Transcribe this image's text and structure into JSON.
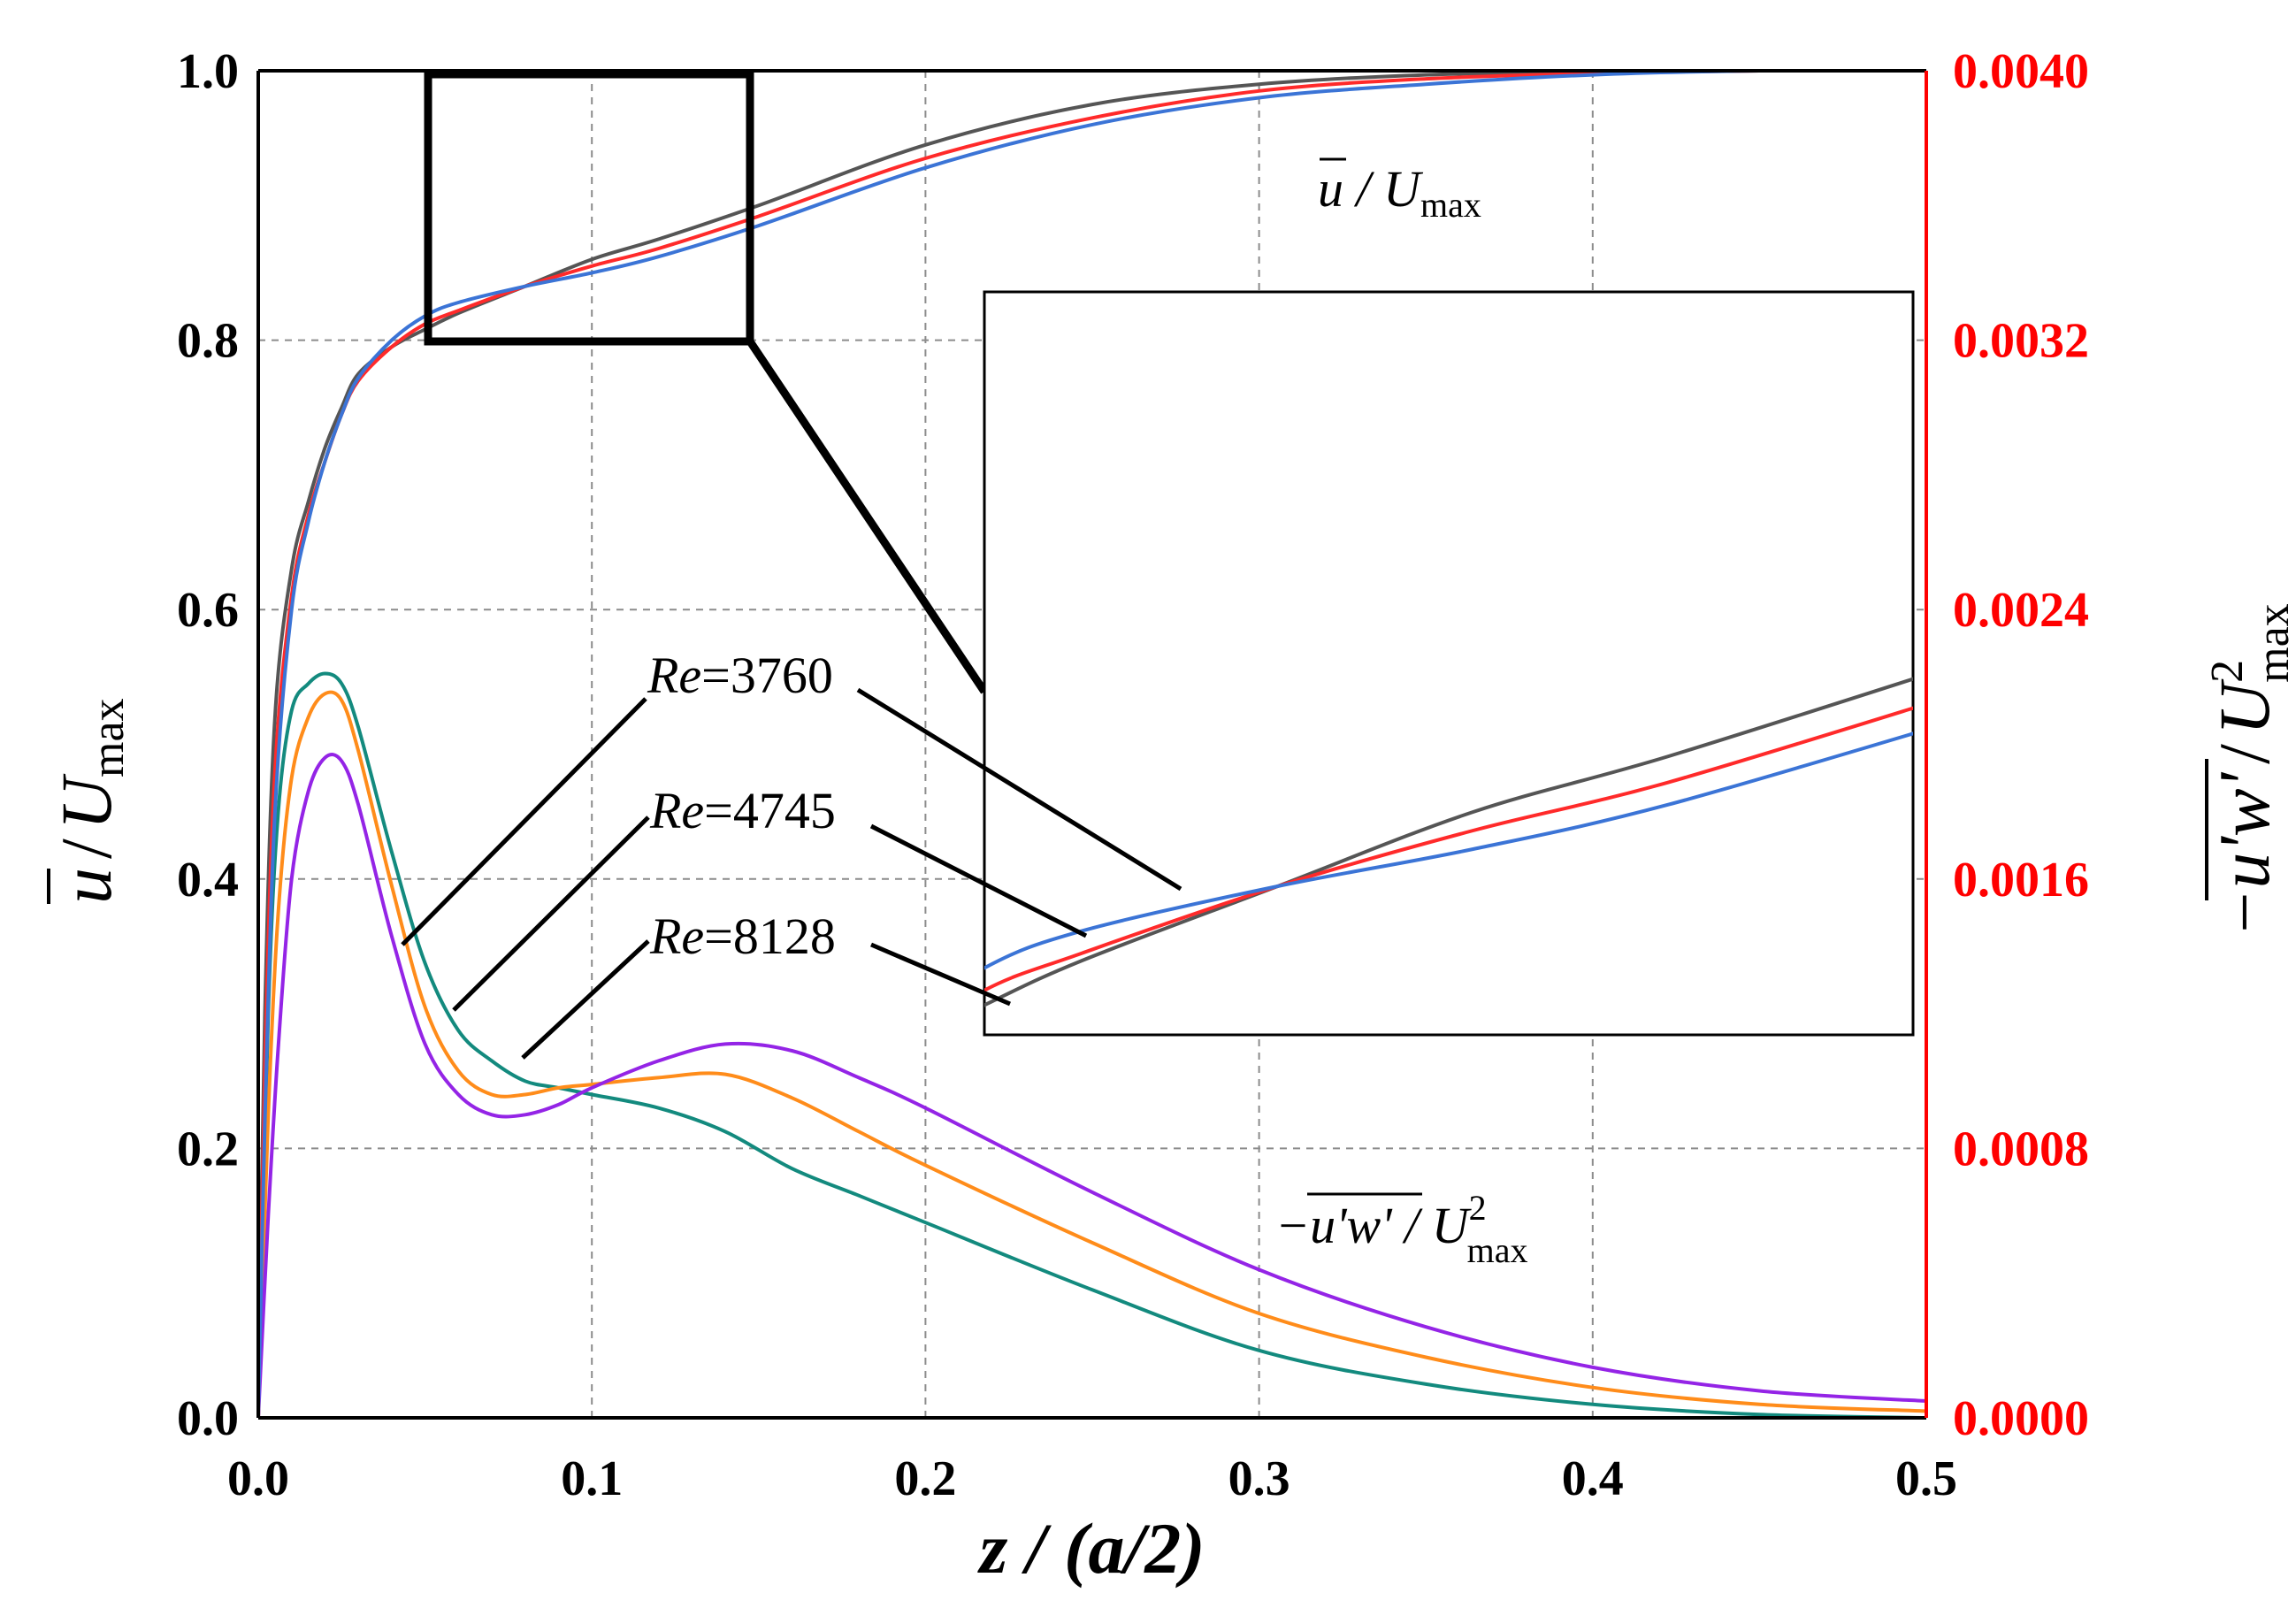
{
  "chart_data": {
    "type": "line",
    "title": "",
    "x_axis": {
      "label": "z / (a/2)",
      "range": [
        0.0,
        0.5
      ],
      "ticks": [
        "0.0",
        "0.1",
        "0.2",
        "0.3",
        "0.4",
        "0.5"
      ]
    },
    "y_left_axis": {
      "label": "u / U_max",
      "label_main": "u",
      "label_denominator": "U",
      "label_sub": "max",
      "range": [
        0.0,
        1.0
      ],
      "ticks": [
        "0.0",
        "0.2",
        "0.4",
        "0.6",
        "0.8",
        "1.0"
      ]
    },
    "y_right_axis": {
      "label": "-u'w' / U_max^2",
      "label_main": "−u'w'",
      "label_denominator": "U",
      "label_sup": "2",
      "label_sub": "max",
      "range": [
        0.0,
        0.004
      ],
      "ticks": [
        "0.0000",
        "0.0008",
        "0.0016",
        "0.0024",
        "0.0032",
        "0.0040"
      ],
      "color": "#ff0000"
    },
    "grid": true,
    "annotations": {
      "mean_velocity": {
        "main": "u",
        "slash": " / U",
        "sub": "max"
      },
      "reynolds_stress": {
        "main": "−u'w'",
        "slash": " / U",
        "sup": "2",
        "sub": "max"
      }
    },
    "re_labels": [
      {
        "re": "Re",
        "value": "=3760"
      },
      {
        "re": "Re",
        "value": "=4745"
      },
      {
        "re": "Re",
        "value": "=8128"
      }
    ],
    "velocity_series": [
      {
        "name": "Re=3760",
        "axis": "left",
        "color": "#555555",
        "x": [
          0,
          0.002,
          0.005,
          0.01,
          0.015,
          0.02,
          0.025,
          0.03,
          0.04,
          0.05,
          0.06,
          0.08,
          0.1,
          0.12,
          0.15,
          0.2,
          0.25,
          0.3,
          0.35,
          0.4,
          0.45,
          0.5
        ],
        "y": [
          0,
          0.3,
          0.52,
          0.63,
          0.68,
          0.72,
          0.75,
          0.775,
          0.795,
          0.808,
          0.82,
          0.84,
          0.86,
          0.875,
          0.9,
          0.945,
          0.975,
          0.99,
          0.997,
          0.999,
          1.0,
          1.0
        ]
      },
      {
        "name": "Re=4745",
        "axis": "left",
        "color": "#ff2a2a",
        "x": [
          0,
          0.002,
          0.005,
          0.01,
          0.015,
          0.02,
          0.025,
          0.03,
          0.04,
          0.05,
          0.06,
          0.08,
          0.1,
          0.12,
          0.15,
          0.2,
          0.25,
          0.3,
          0.35,
          0.4,
          0.45,
          0.5
        ],
        "y": [
          0,
          0.26,
          0.48,
          0.61,
          0.67,
          0.71,
          0.745,
          0.77,
          0.795,
          0.812,
          0.822,
          0.84,
          0.855,
          0.868,
          0.892,
          0.935,
          0.965,
          0.985,
          0.994,
          0.998,
          1.0,
          1.0
        ]
      },
      {
        "name": "Re=8128",
        "axis": "left",
        "color": "#3b74d6",
        "x": [
          0,
          0.002,
          0.005,
          0.01,
          0.015,
          0.02,
          0.025,
          0.03,
          0.04,
          0.05,
          0.06,
          0.08,
          0.1,
          0.12,
          0.15,
          0.2,
          0.25,
          0.3,
          0.35,
          0.4,
          0.45,
          0.5
        ],
        "y": [
          0,
          0.22,
          0.45,
          0.6,
          0.665,
          0.71,
          0.745,
          0.772,
          0.8,
          0.818,
          0.828,
          0.84,
          0.85,
          0.862,
          0.885,
          0.928,
          0.96,
          0.98,
          0.99,
          0.997,
          1.0,
          1.0
        ]
      }
    ],
    "stress_series": [
      {
        "name": "Re=3760",
        "axis": "right",
        "color": "#138a7e",
        "x": [
          0,
          0.003,
          0.006,
          0.01,
          0.015,
          0.02,
          0.025,
          0.03,
          0.04,
          0.05,
          0.06,
          0.07,
          0.08,
          0.09,
          0.1,
          0.12,
          0.14,
          0.16,
          0.18,
          0.2,
          0.25,
          0.3,
          0.35,
          0.4,
          0.45,
          0.5
        ],
        "y": [
          0,
          0.0012,
          0.0018,
          0.0021,
          0.00218,
          0.00221,
          0.00218,
          0.00205,
          0.00168,
          0.00135,
          0.00115,
          0.00106,
          0.001,
          0.00098,
          0.00096,
          0.00092,
          0.00085,
          0.00074,
          0.00066,
          0.00058,
          0.00038,
          0.0002,
          0.0001,
          4e-05,
          1e-05,
          0.0
        ]
      },
      {
        "name": "Re=4745",
        "axis": "right",
        "color": "#ff8c1a",
        "x": [
          0,
          0.003,
          0.006,
          0.01,
          0.015,
          0.02,
          0.025,
          0.03,
          0.04,
          0.05,
          0.06,
          0.07,
          0.08,
          0.09,
          0.1,
          0.12,
          0.14,
          0.16,
          0.18,
          0.2,
          0.25,
          0.3,
          0.35,
          0.4,
          0.45,
          0.5
        ],
        "y": [
          0,
          0.0009,
          0.0015,
          0.0019,
          0.00208,
          0.00215,
          0.00213,
          0.00198,
          0.00158,
          0.00122,
          0.00103,
          0.00096,
          0.00096,
          0.00098,
          0.00099,
          0.00101,
          0.00102,
          0.00095,
          0.00085,
          0.00075,
          0.00052,
          0.00031,
          0.00018,
          9e-05,
          4e-05,
          2e-05
        ]
      },
      {
        "name": "Re=8128",
        "axis": "right",
        "color": "#9424e6",
        "x": [
          0,
          0.003,
          0.006,
          0.01,
          0.015,
          0.02,
          0.025,
          0.03,
          0.04,
          0.05,
          0.06,
          0.07,
          0.08,
          0.09,
          0.1,
          0.12,
          0.14,
          0.16,
          0.18,
          0.2,
          0.25,
          0.3,
          0.35,
          0.4,
          0.45,
          0.5
        ],
        "y": [
          0,
          0.0006,
          0.0011,
          0.0016,
          0.00186,
          0.00196,
          0.00195,
          0.00182,
          0.00143,
          0.00111,
          0.00096,
          0.0009,
          0.0009,
          0.00093,
          0.00098,
          0.00106,
          0.00111,
          0.00109,
          0.00101,
          0.00092,
          0.00067,
          0.00044,
          0.00027,
          0.00015,
          8e-05,
          5e-05
        ]
      }
    ],
    "inset": {
      "description": "magnified view of velocity profiles",
      "x_range": [
        0.05,
        0.145
      ],
      "y_range": [
        0.8,
        1.0
      ]
    }
  }
}
